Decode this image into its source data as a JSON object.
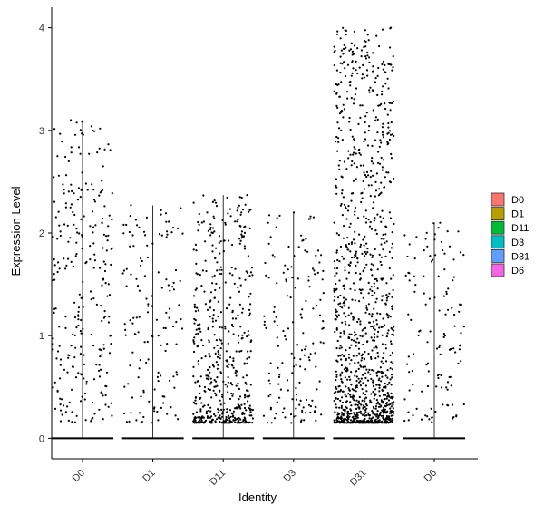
{
  "chart_data": {
    "type": "violin-jitter",
    "title": "",
    "xlabel": "Identity",
    "ylabel": "Expression Level",
    "categories": [
      "D0",
      "D1",
      "D11",
      "D3",
      "D31",
      "D6"
    ],
    "ylim": [
      -0.2,
      4.2
    ],
    "yticks": [
      0,
      1,
      2,
      3,
      4
    ],
    "max_values": [
      3.1,
      2.27,
      2.37,
      2.2,
      4.0,
      2.1
    ],
    "nonzero_point_estimates": [
      270,
      140,
      520,
      160,
      1150,
      130
    ],
    "grid": false,
    "legend": {
      "position": "right",
      "entries": [
        {
          "label": "D0",
          "color": "#F8766D"
        },
        {
          "label": "D1",
          "color": "#B79F00"
        },
        {
          "label": "D11",
          "color": "#00BA38"
        },
        {
          "label": "D3",
          "color": "#00BFC4"
        },
        {
          "label": "D31",
          "color": "#619CFF"
        },
        {
          "label": "D6",
          "color": "#F564E3"
        }
      ]
    }
  }
}
